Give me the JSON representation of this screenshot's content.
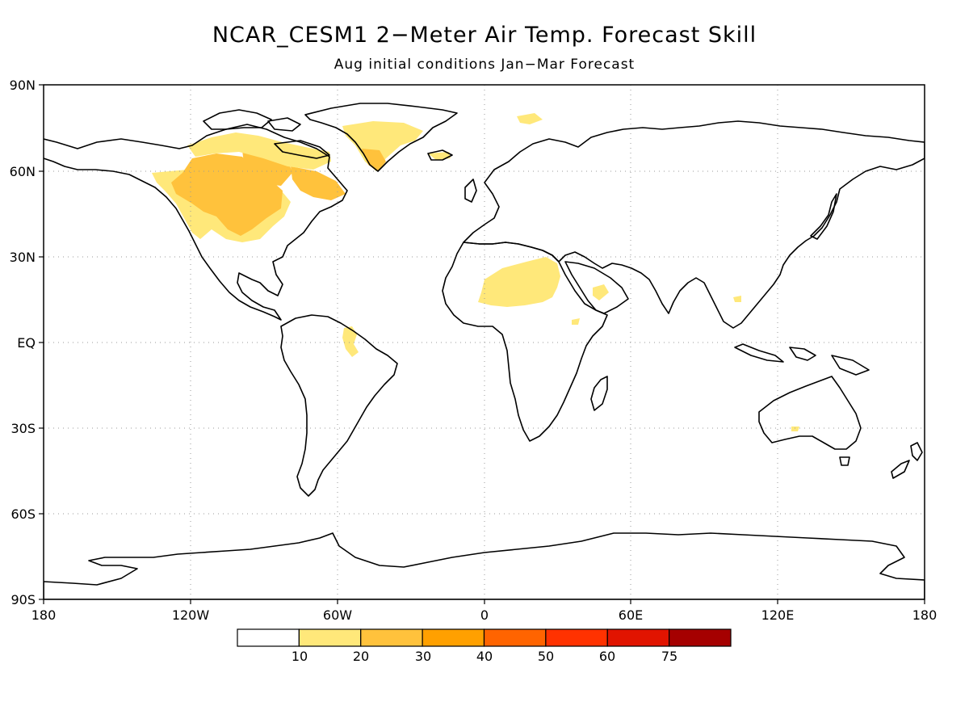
{
  "title": "NCAR_CESM1 2−Meter Air Temp. Forecast Skill",
  "subtitle": "Aug initial conditions  Jan−Mar Forecast",
  "lat_labels": [
    "90N",
    "60N",
    "30N",
    "EQ",
    "30S",
    "60S",
    "90S"
  ],
  "lon_labels": [
    "180",
    "120W",
    "60W",
    "0",
    "60E",
    "120E",
    "180"
  ],
  "colorbar": {
    "colors": [
      "#ffffff",
      "#ffe87a",
      "#ffc23c",
      "#ffa000",
      "#ff6400",
      "#ff3200",
      "#e11400",
      "#a50000"
    ],
    "labels": [
      "10",
      "20",
      "30",
      "40",
      "50",
      "60",
      "75"
    ]
  },
  "map_data": {
    "type": "filled-contour map",
    "projection": "cylindrical equidistant",
    "lon_range": [
      -180,
      180
    ],
    "lat_range": [
      -90,
      90
    ],
    "grid": "dotted",
    "variable": "forecast skill",
    "skill_regions": [
      {
        "region": "north-america-west",
        "level": "10-20"
      },
      {
        "region": "central-canada",
        "level": "20-30"
      },
      {
        "region": "hudson-bay",
        "level": "20-30"
      },
      {
        "region": "eastern-canada",
        "level": "20-30"
      },
      {
        "region": "canadian-arctic",
        "level": "10-20"
      },
      {
        "region": "greenland",
        "level": "10-20"
      },
      {
        "region": "south-greenland",
        "level": "20-30"
      },
      {
        "region": "iceland",
        "level": "10-20"
      },
      {
        "region": "svalbard",
        "level": "10-20"
      },
      {
        "region": "sahara",
        "level": "10-20"
      },
      {
        "region": "arabia",
        "level": "10-20"
      },
      {
        "region": "ethiopia",
        "level": "10-20"
      },
      {
        "region": "northern-south-america",
        "level": "10-20"
      },
      {
        "region": "southeast-asia",
        "level": "10-20"
      },
      {
        "region": "australia",
        "level": "10-20"
      }
    ]
  }
}
